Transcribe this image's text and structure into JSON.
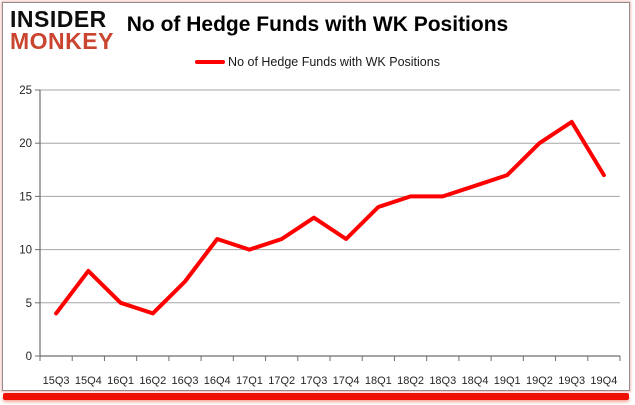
{
  "branding": {
    "logo_line1": "INSIDER",
    "logo_line2": "MONKEY",
    "logo_color2": "#c9452f"
  },
  "header": {
    "title": "No of Hedge Funds with WK Positions"
  },
  "legend": {
    "label": "No of Hedge Funds with WK Positions",
    "line_color": "#ff0000"
  },
  "chart_data": {
    "type": "line",
    "title": "No of Hedge Funds with WK Positions",
    "categories": [
      "15Q3",
      "15Q4",
      "16Q1",
      "16Q2",
      "16Q3",
      "16Q4",
      "17Q1",
      "17Q2",
      "17Q3",
      "17Q4",
      "18Q1",
      "18Q2",
      "18Q3",
      "18Q4",
      "19Q1",
      "19Q2",
      "19Q3",
      "19Q4"
    ],
    "series": [
      {
        "name": "No of Hedge Funds with WK Positions",
        "color": "#ff0000",
        "values": [
          4,
          8,
          5,
          4,
          7,
          11,
          10,
          11,
          13,
          11,
          14,
          15,
          15,
          16,
          17,
          20,
          22,
          17
        ]
      }
    ],
    "xlabel": "",
    "ylabel": "",
    "ylim": [
      0,
      25
    ],
    "yticks": [
      0,
      5,
      10,
      15,
      20,
      25
    ],
    "grid": true,
    "legend_position": "top-center"
  },
  "colors": {
    "gridline": "#a6a6a6",
    "axis": "#6e6e6e",
    "tick_label": "#262626",
    "bottom_bar": "#ee1000"
  }
}
